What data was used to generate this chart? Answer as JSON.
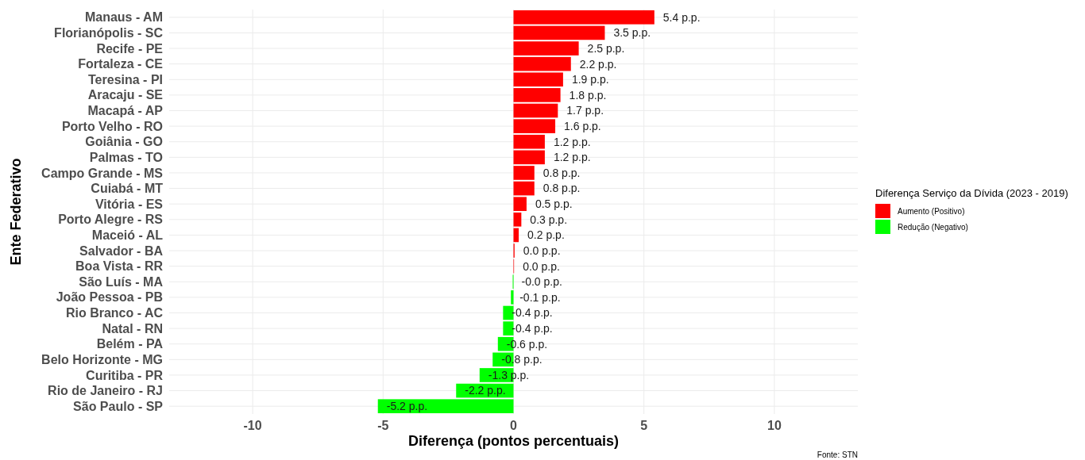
{
  "chart_data": {
    "type": "bar",
    "orientation": "horizontal",
    "xlabel": "Diferença (pontos percentuais)",
    "ylabel": "Ente Federativo",
    "legend_title": "Diferença Serviço da Dívida (2023 - 2019)",
    "legend": "right",
    "grid": true,
    "categories": [
      "Manaus - AM",
      "Florianópolis - SC",
      "Recife - PE",
      "Fortaleza - CE",
      "Teresina - PI",
      "Aracaju - SE",
      "Macapá - AP",
      "Porto Velho - RO",
      "Goiânia - GO",
      "Palmas - TO",
      "Campo Grande - MS",
      "Cuiabá - MT",
      "Vitória - ES",
      "Porto Alegre - RS",
      "Maceió - AL",
      "Salvador - BA",
      "Boa Vista - RR",
      "São Luís - MA",
      "João Pessoa - PB",
      "Rio Branco - AC",
      "Natal - RN",
      "Belém - PA",
      "Belo Horizonte - MG",
      "Curitiba - PR",
      "Rio de Janeiro - RJ",
      "São Paulo - SP"
    ],
    "series": [
      {
        "name": "Aumento (Positivo)",
        "color": "#ff0000",
        "values": [
          5.4,
          3.5,
          2.5,
          2.2,
          1.9,
          1.8,
          1.7,
          1.6,
          1.2,
          1.2,
          0.8,
          0.8,
          0.5,
          0.3,
          0.2,
          0.04,
          0.02,
          null,
          null,
          null,
          null,
          null,
          null,
          null,
          null,
          null
        ],
        "value_labels": [
          "5.4 p.p.",
          "3.5 p.p.",
          "2.5 p.p.",
          "2.2 p.p.",
          "1.9 p.p.",
          "1.8 p.p.",
          "1.7 p.p.",
          "1.6 p.p.",
          "1.2 p.p.",
          "1.2 p.p.",
          "0.8 p.p.",
          "0.8 p.p.",
          "0.5 p.p.",
          "0.3 p.p.",
          "0.2 p.p.",
          "0.0 p.p.",
          "0.0 p.p.",
          null,
          null,
          null,
          null,
          null,
          null,
          null,
          null,
          null
        ]
      },
      {
        "name": "Redução (Negativo)",
        "color": "#00ff00",
        "values": [
          null,
          null,
          null,
          null,
          null,
          null,
          null,
          null,
          null,
          null,
          null,
          null,
          null,
          null,
          null,
          null,
          null,
          -0.03,
          -0.1,
          -0.4,
          -0.4,
          -0.6,
          -0.8,
          -1.3,
          -2.2,
          -5.2
        ],
        "value_labels": [
          null,
          null,
          null,
          null,
          null,
          null,
          null,
          null,
          null,
          null,
          null,
          null,
          null,
          null,
          null,
          null,
          null,
          "-0.0 p.p.",
          "-0.1 p.p.",
          "-0.4 p.p.",
          "-0.4 p.p.",
          "-0.6 p.p.",
          "-0.8 p.p.",
          "-1.3 p.p.",
          "-2.2 p.p.",
          "-5.2 p.p."
        ]
      }
    ],
    "xlim": [
      -13.2,
      13.2
    ],
    "xticks": [
      -10,
      -5,
      0,
      5,
      10
    ],
    "annotations": [
      "Fonte: STN"
    ]
  }
}
